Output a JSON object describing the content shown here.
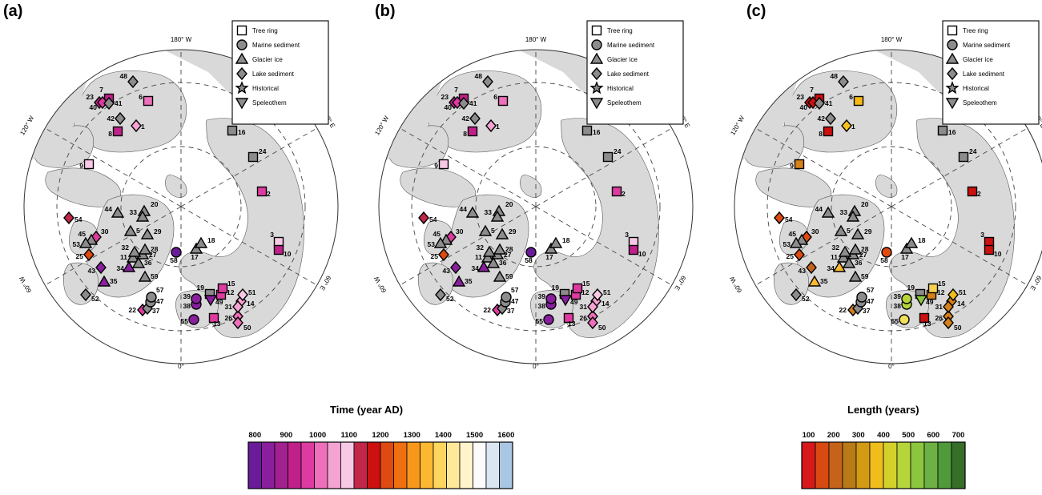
{
  "panels": [
    {
      "label": "(a)",
      "color_mode": "time"
    },
    {
      "label": "(b)",
      "color_mode": "time"
    },
    {
      "label": "(c)",
      "color_mode": "length"
    }
  ],
  "map_labels": {
    "lon_top": "180° W",
    "lon_bottom": "0°",
    "lon_upper_left": "120° W",
    "lon_lower_left": "60° W",
    "lon_upper_right": "120° E",
    "lon_lower_right": "60° E"
  },
  "symbol_legend": [
    {
      "shape": "square",
      "label": "Tree ring"
    },
    {
      "shape": "circle",
      "label": "Marine sediment"
    },
    {
      "shape": "triangle-up",
      "label": "Glacier ice"
    },
    {
      "shape": "diamond",
      "label": "Lake sediment"
    },
    {
      "shape": "star",
      "label": "Historical"
    },
    {
      "shape": "triangle-down",
      "label": "Speleothem"
    }
  ],
  "time_colorbar": {
    "title": "Time (year AD)",
    "ticks": [
      "800",
      "900",
      "1000",
      "1100",
      "1200",
      "1300",
      "1400",
      "1500",
      "1600"
    ],
    "colors": [
      "#6a1b9a",
      "#8a1f9e",
      "#a3218f",
      "#c0208a",
      "#de3ba0",
      "#ee6fba",
      "#f5a3d3",
      "#f8c9e4",
      "#c2274a",
      "#cc1010",
      "#df4a10",
      "#ee7010",
      "#f7981a",
      "#fbb830",
      "#fed55f",
      "#fee99a",
      "#fff4cc",
      "#fbfbfb",
      "#dbe6f2",
      "#a9c6e2"
    ]
  },
  "length_colorbar": {
    "title": "Length (years)",
    "ticks": [
      "100",
      "200",
      "300",
      "400",
      "500",
      "600",
      "700"
    ],
    "colors": [
      "#d7191c",
      "#d84a12",
      "#c6631a",
      "#b97b16",
      "#d39b14",
      "#f0be1c",
      "#d3d12a",
      "#b5d53b",
      "#8cc63f",
      "#6db043",
      "#4f9a3b",
      "#376e28"
    ]
  },
  "proxy_records": [
    {
      "id": "1",
      "shape": "diamond",
      "time_color": "#f5a3d3",
      "length_color": "#f7c21c"
    },
    {
      "id": "2",
      "shape": "square",
      "time_color": "#de3ba0",
      "length_color": "#cc1010"
    },
    {
      "id": "3",
      "shape": "square",
      "time_color": "#f8c9e4",
      "length_color": "#cc1010"
    },
    {
      "id": "5",
      "shape": "triangle-up",
      "time_color": "#8c8c8c",
      "length_color": "#8c8c8c"
    },
    {
      "id": "6",
      "shape": "square",
      "time_color": "#ee6fba",
      "length_color": "#f7b813"
    },
    {
      "id": "7",
      "shape": "square",
      "time_color": "#c0208a",
      "length_color": "#cc1010"
    },
    {
      "id": "8",
      "shape": "square",
      "time_color": "#c0208a",
      "length_color": "#cc1010"
    },
    {
      "id": "9",
      "shape": "square",
      "time_color": "#f8c9e4",
      "length_color": "#d5801a"
    },
    {
      "id": "10",
      "shape": "square",
      "time_color": "#c0208a",
      "length_color": "#cc1010"
    },
    {
      "id": "11",
      "shape": "triangle-up",
      "time_color": "#8c8c8c",
      "length_color": "#8c8c8c"
    },
    {
      "id": "12",
      "shape": "square",
      "time_color": "#de3ba0",
      "length_color": "#d5801a"
    },
    {
      "id": "13",
      "shape": "square",
      "time_color": "#de3ba0",
      "length_color": "#cc1010"
    },
    {
      "id": "14",
      "shape": "diamond",
      "time_color": "#f5a3d3",
      "length_color": "#d5801a"
    },
    {
      "id": "15",
      "shape": "square",
      "time_color": "#de3ba0",
      "length_color": "#f7d050"
    },
    {
      "id": "16",
      "shape": "square",
      "time_color": "#8c8c8c",
      "length_color": "#8c8c8c"
    },
    {
      "id": "17",
      "shape": "triangle-up",
      "time_color": "#8c8c8c",
      "length_color": "#8c8c8c"
    },
    {
      "id": "18",
      "shape": "triangle-up",
      "time_color": "#8c8c8c",
      "length_color": "#8c8c8c"
    },
    {
      "id": "19",
      "shape": "square",
      "time_color": "#8c8c8c",
      "length_color": "#8c8c8c"
    },
    {
      "id": "20",
      "shape": "triangle-up",
      "time_color": "#8c8c8c",
      "length_color": "#8c8c8c"
    },
    {
      "id": "22",
      "shape": "diamond",
      "time_color": "#de3ba0",
      "length_color": "#d5801a"
    },
    {
      "id": "23",
      "shape": "diamond",
      "time_color": "#c0208a",
      "length_color": "#cc1010"
    },
    {
      "id": "24",
      "shape": "square",
      "time_color": "#8c8c8c",
      "length_color": "#8c8c8c"
    },
    {
      "id": "25",
      "shape": "diamond",
      "time_color": "#df4a10",
      "length_color": "#df4a10"
    },
    {
      "id": "26",
      "shape": "diamond",
      "time_color": "#ee6fba",
      "length_color": "#d5801a"
    },
    {
      "id": "27",
      "shape": "triangle-up",
      "time_color": "#8c8c8c",
      "length_color": "#8c8c8c"
    },
    {
      "id": "28",
      "shape": "triangle-up",
      "time_color": "#8c8c8c",
      "length_color": "#8c8c8c"
    },
    {
      "id": "29",
      "shape": "triangle-up",
      "time_color": "#8c8c8c",
      "length_color": "#8c8c8c"
    },
    {
      "id": "30",
      "shape": "diamond",
      "time_color": "#de3ba0",
      "length_color": "#df4a10"
    },
    {
      "id": "31",
      "shape": "diamond",
      "time_color": "#f5a3d3",
      "length_color": "#d5801a"
    },
    {
      "id": "32",
      "shape": "triangle-up",
      "time_color": "#8c8c8c",
      "length_color": "#8c8c8c"
    },
    {
      "id": "33",
      "shape": "triangle-up",
      "time_color": "#8c8c8c",
      "length_color": "#8c8c8c"
    },
    {
      "id": "34",
      "shape": "triangle-up",
      "time_color": "#8a1f9e",
      "length_color": "#fbb830"
    },
    {
      "id": "35",
      "shape": "triangle-up",
      "time_color": "#8a1f9e",
      "length_color": "#fbb830"
    },
    {
      "id": "36",
      "shape": "triangle-up",
      "time_color": "#8c8c8c",
      "length_color": "#8c8c8c"
    },
    {
      "id": "37",
      "shape": "diamond",
      "time_color": "#8c8c8c",
      "length_color": "#8c8c8c"
    },
    {
      "id": "38",
      "shape": "circle",
      "time_color": "#8a1f9e",
      "length_color": "#b5d53b"
    },
    {
      "id": "39",
      "shape": "circle",
      "time_color": "#8a1f9e",
      "length_color": "#b5d53b"
    },
    {
      "id": "40",
      "shape": "diamond",
      "time_color": "#de3ba0",
      "length_color": "#cc1010"
    },
    {
      "id": "41",
      "shape": "diamond",
      "time_color": "#8c8c8c",
      "length_color": "#8c8c8c"
    },
    {
      "id": "42",
      "shape": "diamond",
      "time_color": "#8c8c8c",
      "length_color": "#8c8c8c"
    },
    {
      "id": "43",
      "shape": "diamond",
      "time_color": "#8a1f9e",
      "length_color": "#c6631a"
    },
    {
      "id": "44",
      "shape": "triangle-up",
      "time_color": "#8c8c8c",
      "length_color": "#8c8c8c"
    },
    {
      "id": "45",
      "shape": "triangle-up",
      "time_color": "#8c8c8c",
      "length_color": "#8c8c8c"
    },
    {
      "id": "47",
      "shape": "circle",
      "time_color": "#8c8c8c",
      "length_color": "#8c8c8c"
    },
    {
      "id": "48",
      "shape": "diamond",
      "time_color": "#8c8c8c",
      "length_color": "#8c8c8c"
    },
    {
      "id": "49",
      "shape": "triangle-down",
      "time_color": "#8a1f9e",
      "length_color": "#8cc63f"
    },
    {
      "id": "50",
      "shape": "diamond",
      "time_color": "#ee6fba",
      "length_color": "#d5801a"
    },
    {
      "id": "51",
      "shape": "diamond",
      "time_color": "#f8c9e4",
      "length_color": "#f0be1c"
    },
    {
      "id": "52",
      "shape": "diamond",
      "time_color": "#8c8c8c",
      "length_color": "#8c8c8c"
    },
    {
      "id": "53",
      "shape": "triangle-up",
      "time_color": "#8c8c8c",
      "length_color": "#8c8c8c"
    },
    {
      "id": "54",
      "shape": "diamond",
      "time_color": "#c2274a",
      "length_color": "#df4a10"
    },
    {
      "id": "55",
      "shape": "circle",
      "time_color": "#8a1f9e",
      "length_color": "#f0e05a"
    },
    {
      "id": "57",
      "shape": "circle",
      "time_color": "#8c8c8c",
      "length_color": "#8c8c8c"
    },
    {
      "id": "58",
      "shape": "circle",
      "time_color": "#6a1b9a",
      "length_color": "#df4a10"
    },
    {
      "id": "59",
      "shape": "triangle-up",
      "time_color": "#8c8c8c",
      "length_color": "#8c8c8c"
    }
  ]
}
